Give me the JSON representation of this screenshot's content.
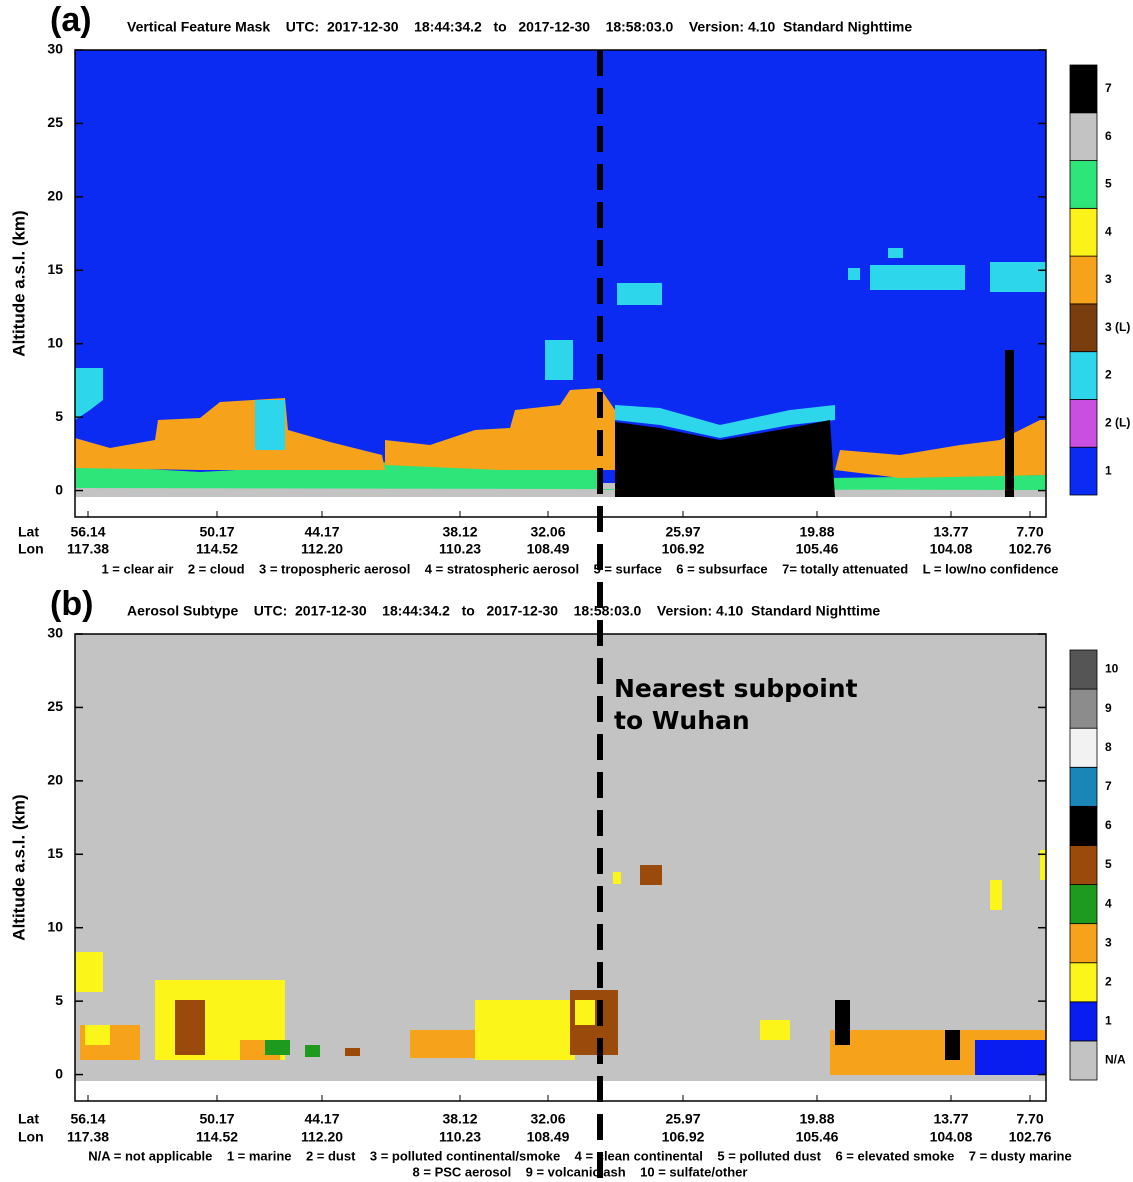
{
  "chart_data": [
    {
      "type": "curtain",
      "panel_label": "(a)",
      "title": "Vertical Feature Mask    UTC:  2017-12-30    18:44:34.2   to   2017-12-30    18:58:03.0    Version: 4.10  Standard Nighttime",
      "y_label": "Altitude a.s.l. (km)",
      "ylim": [
        -1.8,
        30
      ],
      "yticks": [
        0,
        5,
        10,
        15,
        20,
        25,
        30
      ],
      "lat_label": "Lat",
      "lon_label": "Lon",
      "lat": [
        "56.14",
        "50.17",
        "44.17",
        "38.12",
        "32.06",
        "25.97",
        "19.88",
        "13.77",
        "7.70"
      ],
      "lon": [
        "117.38",
        "114.52",
        "112.20",
        "110.23",
        "108.49",
        "106.92",
        "105.46",
        "104.08",
        "102.76"
      ],
      "legend_lines": [
        "1 = clear air    2 = cloud    3 = tropospheric aerosol    4 = stratospheric aerosol    5 = surface    6 = subsurface    7= totally attenuated    L = low/no confidence"
      ],
      "colorbar": [
        {
          "label": "1",
          "color": "#0b2bf2"
        },
        {
          "label": "2 (L)",
          "color": "#c84fe0"
        },
        {
          "label": "2",
          "color": "#2ed6ec"
        },
        {
          "label": "3 (L)",
          "color": "#7a3e0e"
        },
        {
          "label": "3",
          "color": "#f7a21b"
        },
        {
          "label": "4",
          "color": "#fbf21a"
        },
        {
          "label": "5",
          "color": "#2ee57a"
        },
        {
          "label": "6",
          "color": "#c3c3c3"
        },
        {
          "label": "7",
          "color": "#000000"
        }
      ]
    },
    {
      "type": "curtain",
      "panel_label": "(b)",
      "title": "Aerosol Subtype    UTC:  2017-12-30    18:44:34.2   to   2017-12-30    18:58:03.0    Version: 4.10  Standard Nighttime",
      "y_label": "Altitude a.s.l. (km)",
      "ylim": [
        -1.8,
        30
      ],
      "yticks": [
        0,
        5,
        10,
        15,
        20,
        25,
        30
      ],
      "lat_label": "Lat",
      "lon_label": "Lon",
      "lat": [
        "56.14",
        "50.17",
        "44.17",
        "38.12",
        "32.06",
        "25.97",
        "19.88",
        "13.77",
        "7.70"
      ],
      "lon": [
        "117.38",
        "114.52",
        "112.20",
        "110.23",
        "108.49",
        "106.92",
        "105.46",
        "104.08",
        "102.76"
      ],
      "legend_lines": [
        "N/A = not applicable    1 = marine    2 = dust    3 = polluted continental/smoke    4 = clean continental    5 = polluted dust    6 = elevated smoke    7 = dusty marine",
        "8 = PSC aerosol    9 = volcanic ash    10 = sulfate/other"
      ],
      "colorbar": [
        {
          "label": "N/A",
          "color": "#c3c3c3"
        },
        {
          "label": "1",
          "color": "#0a1df0"
        },
        {
          "label": "2",
          "color": "#fbf51a"
        },
        {
          "label": "3",
          "color": "#f7a21b"
        },
        {
          "label": "4",
          "color": "#1e9a1e"
        },
        {
          "label": "5",
          "color": "#9a4a0a"
        },
        {
          "label": "6",
          "color": "#000000"
        },
        {
          "label": "7",
          "color": "#1a86b8"
        },
        {
          "label": "8",
          "color": "#f2f2f2"
        },
        {
          "label": "9",
          "color": "#8c8c8c"
        },
        {
          "label": "10",
          "color": "#555555"
        }
      ],
      "annotation": [
        "Nearest subpoint",
        "to Wuhan"
      ]
    }
  ]
}
